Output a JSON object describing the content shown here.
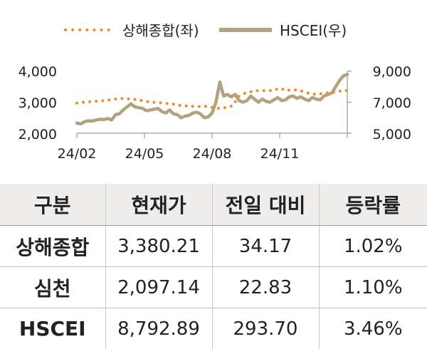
{
  "chart_data": {
    "type": "line",
    "x_tick_labels": [
      "24/02",
      "24/05",
      "24/08",
      "24/11"
    ],
    "y_left": {
      "ylim": [
        2000,
        4000
      ],
      "tick_labels": [
        "4,000",
        "3,000",
        "2,000"
      ]
    },
    "y_right": {
      "ylim": [
        5000,
        9000
      ],
      "tick_labels": [
        "9,000",
        "7,000",
        "5,000"
      ]
    },
    "series": [
      {
        "name": "상해종합(좌)",
        "axis": "left",
        "style": "dotted",
        "color": "#ee8a32",
        "values": [
          2975,
          3000,
          3015,
          3030,
          3050,
          3080,
          3110,
          3120,
          3100,
          3080,
          3040,
          3000,
          2990,
          2960,
          2950,
          2900,
          2880,
          2870,
          2860,
          2870,
          2830,
          2800,
          2830,
          2880,
          3200,
          3300,
          3350,
          3380,
          3370,
          3380,
          3450,
          3380,
          3400,
          3380,
          3300,
          3260,
          3270,
          3300,
          3320,
          3360,
          3380
        ]
      },
      {
        "name": "HSCEI(우)",
        "axis": "right",
        "style": "solid",
        "color": "#b3a27f",
        "values": [
          5650,
          5600,
          5750,
          5800,
          5780,
          5850,
          5900,
          5880,
          5950,
          5850,
          6200,
          6250,
          6500,
          6700,
          6900,
          6700,
          6650,
          6600,
          6450,
          6500,
          6550,
          6600,
          6400,
          6300,
          6500,
          6250,
          6200,
          6000,
          6100,
          6150,
          6300,
          6350,
          6250,
          6000,
          6050,
          6300,
          7000,
          8300,
          7400,
          7500,
          7350,
          7500,
          7100,
          7000,
          7100,
          7400,
          7200,
          7000,
          7200,
          7050,
          7000,
          7150,
          7300,
          7100,
          7150,
          7350,
          7400,
          7250,
          7350,
          7200,
          7100,
          7300,
          7200,
          7150,
          7400,
          7500,
          7600,
          8000,
          8400,
          8700,
          8792.89
        ]
      }
    ]
  },
  "table": {
    "headers": [
      "구분",
      "현재가",
      "전일 대비",
      "등락률"
    ],
    "rows": [
      [
        "상해종합",
        "3,380.21",
        "34.17",
        "1.02%"
      ],
      [
        "심천",
        "2,097.14",
        "22.83",
        "1.10%"
      ],
      [
        "HSCEI",
        "8,792.89",
        "293.70",
        "3.46%"
      ]
    ]
  }
}
